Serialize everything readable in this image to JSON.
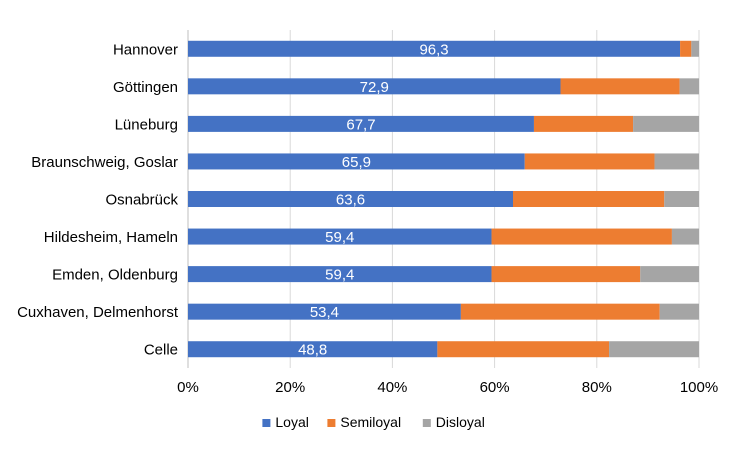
{
  "chart_data": {
    "type": "bar",
    "orientation": "horizontal",
    "stacked": "percent",
    "categories": [
      "Hannover",
      "Göttingen",
      "Lüneburg",
      "Braunschweig, Goslar",
      "Osnabrück",
      "Hildesheim, Hameln",
      "Emden, Oldenburg",
      "Cuxhaven, Delmenhorst",
      "Celle"
    ],
    "series": [
      {
        "name": "Loyal",
        "color": "#4472c4",
        "values": [
          96.3,
          72.9,
          67.7,
          65.9,
          63.6,
          59.4,
          59.4,
          53.4,
          48.8
        ]
      },
      {
        "name": "Semiloyal",
        "color": "#ed7d31",
        "values": [
          2.2,
          23.3,
          19.4,
          25.4,
          29.6,
          35.3,
          29.1,
          38.9,
          33.6
        ]
      },
      {
        "name": "Disloyal",
        "color": "#a5a5a5",
        "values": [
          1.5,
          3.8,
          12.9,
          8.7,
          6.8,
          5.3,
          11.5,
          7.7,
          17.6
        ]
      }
    ],
    "data_labels": [
      "96,3",
      "72,9",
      "67,7",
      "65,9",
      "63,6",
      "59,4",
      "59,4",
      "53,4",
      "48,8"
    ],
    "xlim": [
      0,
      100
    ],
    "x_ticks": [
      "0%",
      "20%",
      "40%",
      "60%",
      "80%",
      "100%"
    ],
    "grid": true,
    "legend_position": "bottom",
    "title": "",
    "xlabel": "",
    "ylabel": ""
  }
}
